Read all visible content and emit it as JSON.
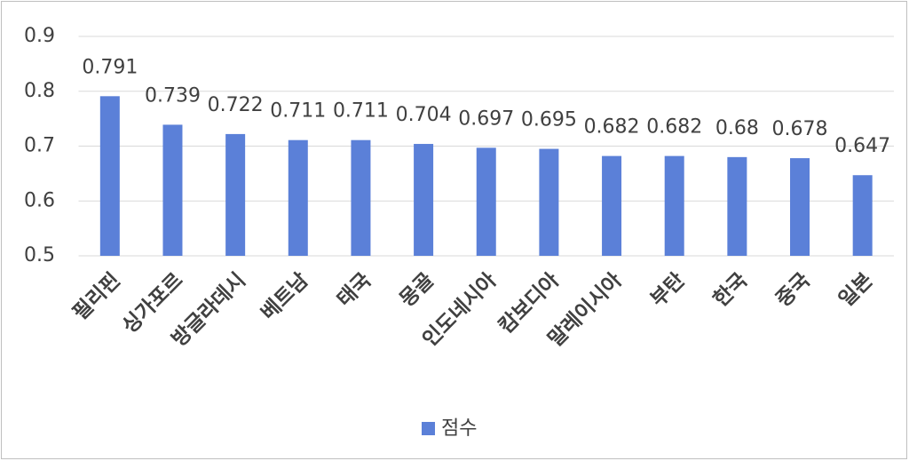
{
  "chart_data": {
    "type": "bar",
    "categories": [
      "필리핀",
      "싱가포르",
      "방글라데시",
      "베트남",
      "태국",
      "몽골",
      "인도네시아",
      "캄보디아",
      "말레이시아",
      "부탄",
      "한국",
      "중국",
      "일본"
    ],
    "series": [
      {
        "name": "점수",
        "color": "#5b80d8",
        "values": [
          0.791,
          0.739,
          0.722,
          0.711,
          0.711,
          0.704,
          0.697,
          0.695,
          0.682,
          0.682,
          0.68,
          0.678,
          0.647
        ]
      }
    ],
    "ylim": [
      0.5,
      0.9
    ],
    "yticks": [
      0.5,
      0.6,
      0.7,
      0.8,
      0.9
    ],
    "grid": true,
    "legend": "bottom"
  }
}
